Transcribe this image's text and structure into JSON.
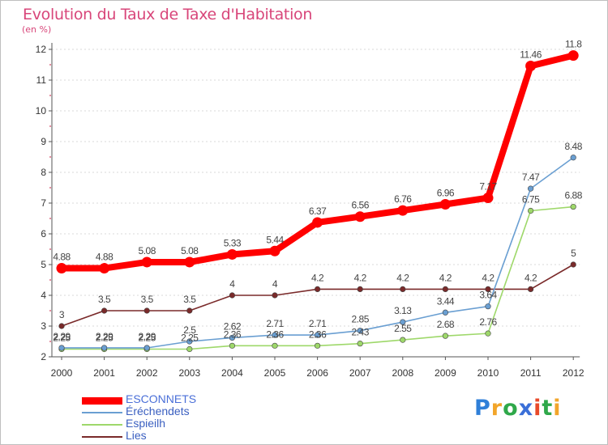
{
  "chart_data": {
    "type": "line",
    "title": "Evolution du Taux de Taxe d'Habitation",
    "subtitle": "(en %)",
    "x": [
      "2000",
      "2001",
      "2002",
      "2003",
      "2004",
      "2005",
      "2006",
      "2007",
      "2008",
      "2009",
      "2010",
      "2011",
      "2012"
    ],
    "ylim": [
      2,
      12
    ],
    "yticks": [
      2,
      3,
      4,
      5,
      6,
      7,
      8,
      9,
      10,
      11,
      12
    ],
    "grid": "horizontal dotted",
    "legend_position": "bottom-left",
    "series": [
      {
        "name": "ESCONNETS",
        "color": "#ff0000",
        "values": [
          4.88,
          4.88,
          5.08,
          5.08,
          5.33,
          5.44,
          6.37,
          6.56,
          6.76,
          6.96,
          7.17,
          11.46,
          11.8
        ],
        "labels": [
          "4.88",
          "4.88",
          "5.08",
          "5.08",
          "5.33",
          "5.44",
          "6.37",
          "6.56",
          "6.76",
          "6.96",
          "7.17",
          "11.46",
          "11.8"
        ]
      },
      {
        "name": "Éréchendets",
        "color": "#6a9fd2",
        "values": [
          2.29,
          2.29,
          2.29,
          2.5,
          2.62,
          2.71,
          2.71,
          2.85,
          3.13,
          3.44,
          3.64,
          7.47,
          8.48
        ],
        "labels": [
          "2.29",
          "2.29",
          "2.29",
          "2.5",
          "2.62",
          "2.71",
          "2.71",
          "2.85",
          "3.13",
          "3.44",
          "3.64",
          "7.47",
          "8.48"
        ]
      },
      {
        "name": "Espieilh",
        "color": "#9ed86a",
        "values": [
          2.25,
          2.25,
          2.25,
          2.25,
          2.36,
          2.36,
          2.36,
          2.43,
          2.55,
          2.68,
          2.76,
          6.75,
          6.88
        ],
        "labels": [
          "2.25",
          "2.25",
          "2.25",
          "2.25",
          "2.36",
          "2.36",
          "2.36",
          "2.43",
          "2.55",
          "2.68",
          "2.76",
          "6.75",
          "6.88"
        ]
      },
      {
        "name": "Lies",
        "color": "#7a2a2a",
        "values": [
          3,
          3.5,
          3.5,
          3.5,
          4,
          4,
          4.2,
          4.2,
          4.2,
          4.2,
          4.2,
          4.2,
          5
        ],
        "labels": [
          "3",
          "3.5",
          "3.5",
          "3.5",
          "4",
          "4",
          "4.2",
          "4.2",
          "4.2",
          "4.2",
          "4.2",
          "4.2",
          "5"
        ]
      }
    ]
  },
  "logo": {
    "letters": [
      {
        "ch": "P",
        "color": "#2f7fd8"
      },
      {
        "ch": "r",
        "color": "#f2a52a"
      },
      {
        "ch": "o",
        "color": "#2fa84a"
      },
      {
        "ch": "x",
        "color": "#3a6fd8"
      },
      {
        "ch": "i",
        "color": "#e84a2a"
      },
      {
        "ch": "t",
        "color": "#2fa84a"
      },
      {
        "ch": "i",
        "color": "#f2a52a"
      }
    ]
  }
}
